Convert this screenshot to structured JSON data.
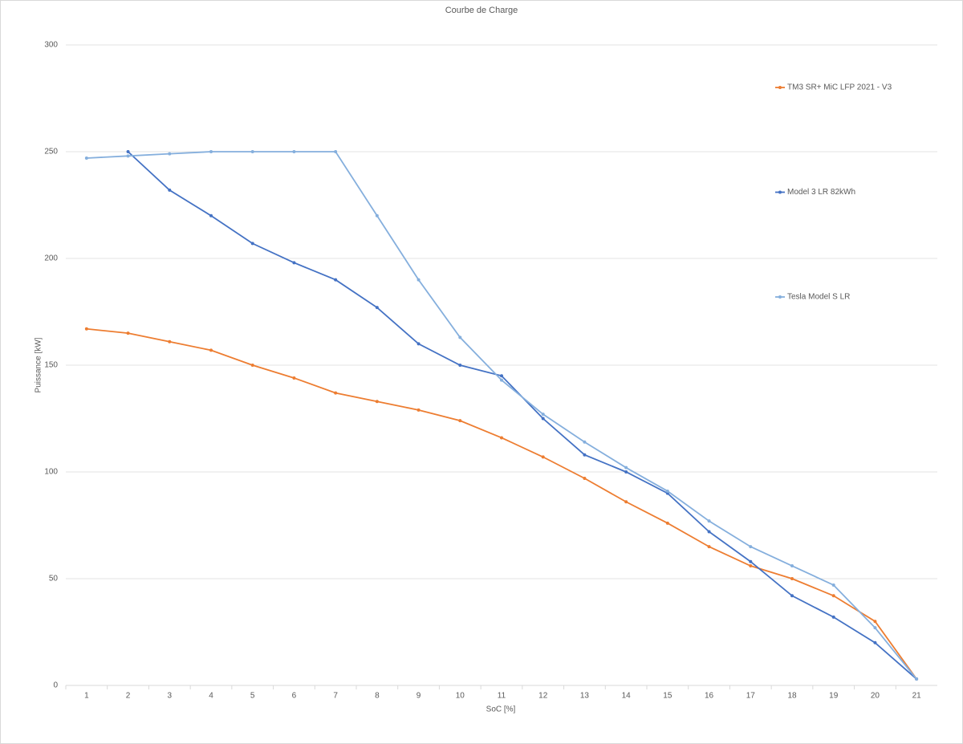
{
  "chart_data": {
    "type": "line",
    "title": "Courbe de Charge",
    "x_label": "SoC [%]",
    "y_label": "Puissance [kW]",
    "categories": [
      "1",
      "2",
      "3",
      "4",
      "5",
      "6",
      "7",
      "8",
      "9",
      "10",
      "11",
      "12",
      "13",
      "14",
      "15",
      "16",
      "17",
      "18",
      "19",
      "20",
      "21"
    ],
    "series": [
      {
        "name": "TM3 SR+ MiC LFP 2021 - V3",
        "color": "#ed7d31",
        "values": [
          167,
          165,
          161,
          157,
          150,
          144,
          137,
          133,
          129,
          124,
          116,
          107,
          97,
          86,
          76,
          65,
          56,
          50,
          42,
          30,
          3
        ]
      },
      {
        "name": "Model 3 LR 82kWh",
        "color": "#4472c4",
        "values": [
          null,
          250,
          232,
          220,
          207,
          198,
          190,
          177,
          160,
          150,
          145,
          125,
          108,
          100,
          90,
          72,
          58,
          42,
          32,
          20,
          3
        ]
      },
      {
        "name": "Tesla Model S LR",
        "color": "#85afdd",
        "values": [
          247,
          248,
          249,
          250,
          250,
          250,
          250,
          220,
          190,
          163,
          143,
          127,
          114,
          102,
          91,
          77,
          65,
          56,
          47,
          27,
          3
        ]
      }
    ],
    "ylim": [
      0,
      300
    ],
    "yticks": [
      0,
      50,
      100,
      150,
      200,
      250,
      300
    ],
    "grid": true
  }
}
